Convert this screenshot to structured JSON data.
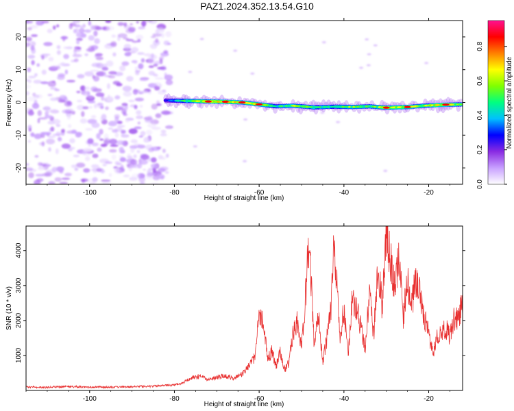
{
  "title": "PAZ1.2024.352.13.54.G10",
  "colors": {
    "snr_line": "#e83030",
    "axis": "#000000"
  },
  "chart_data": [
    {
      "type": "heatmap",
      "title": "PAZ1.2024.352.13.54.G10",
      "xlabel": "Height of straight line (km)",
      "ylabel": "Frequency (Hz)",
      "xlim": [
        -115,
        -12
      ],
      "ylim": [
        -25,
        25
      ],
      "xticks": [
        -100,
        -80,
        -60,
        -40,
        -20
      ],
      "yticks": [
        -20,
        -10,
        0,
        10,
        20
      ],
      "colorbar": {
        "label": "Normalized spectral amplitude",
        "range": [
          0,
          0.95
        ],
        "ticks": [
          "0.0",
          "0.2",
          "0.4",
          "0.6",
          "0.8"
        ],
        "colormap": [
          "#ffffff",
          "#c8a0ff",
          "#8a2be2",
          "#0000ff",
          "#00c0ff",
          "#00ff80",
          "#80ff00",
          "#ffff00",
          "#ff8000",
          "#ff0000",
          "#ff1090"
        ]
      },
      "noise_region": {
        "x": [
          -115,
          -84
        ],
        "y": [
          -25,
          25
        ],
        "level": 0.12
      },
      "ridge": [
        {
          "x": -82,
          "y": 0.6,
          "level": 0.3
        },
        {
          "x": -78,
          "y": 0.5,
          "level": 0.55
        },
        {
          "x": -72,
          "y": 0.3,
          "level": 0.8
        },
        {
          "x": -68,
          "y": 0.2,
          "level": 0.85
        },
        {
          "x": -64,
          "y": 0.0,
          "level": 0.8
        },
        {
          "x": -60,
          "y": -0.6,
          "level": 0.75
        },
        {
          "x": -56,
          "y": -1.2,
          "level": 0.5
        },
        {
          "x": -52,
          "y": -1.0,
          "level": 0.7
        },
        {
          "x": -47,
          "y": -1.5,
          "level": 0.6
        },
        {
          "x": -42,
          "y": -1.3,
          "level": 0.55
        },
        {
          "x": -38,
          "y": -1.4,
          "level": 0.7
        },
        {
          "x": -34,
          "y": -1.2,
          "level": 0.6
        },
        {
          "x": -30,
          "y": -1.6,
          "level": 0.8
        },
        {
          "x": -25,
          "y": -1.4,
          "level": 0.75
        },
        {
          "x": -21,
          "y": -1.0,
          "level": 0.7
        },
        {
          "x": -16,
          "y": -0.7,
          "level": 0.85
        },
        {
          "x": -12,
          "y": -0.6,
          "level": 0.6
        }
      ]
    },
    {
      "type": "line",
      "xlabel": "Height of straight line (km)",
      "ylabel": "SNR (10 * v/v)",
      "xlim": [
        -115,
        -12
      ],
      "ylim": [
        0,
        4700
      ],
      "xticks": [
        -100,
        -80,
        -60,
        -40,
        -20
      ],
      "yticks": [
        1000,
        2000,
        3000,
        4000
      ],
      "series": [
        {
          "x": [
            -115,
            -110,
            -105,
            -100,
            -95,
            -90,
            -85,
            -80,
            -78,
            -76,
            -74,
            -72,
            -70,
            -68,
            -66,
            -64,
            -62,
            -61,
            -60,
            -59,
            -58,
            -57,
            -56,
            -55,
            -54,
            -53,
            -52,
            -51,
            -50,
            -49,
            -48.5,
            -48,
            -47,
            -46,
            -45,
            -44,
            -43,
            -42.5,
            -42,
            -41,
            -40,
            -39,
            -38,
            -37,
            -36,
            -35,
            -34,
            -33,
            -32,
            -31,
            -30,
            -29,
            -28,
            -27,
            -26,
            -25,
            -24,
            -23,
            -22,
            -21,
            -20,
            -19,
            -18,
            -17,
            -16,
            -15,
            -14,
            -13,
            -12
          ],
          "y": [
            100,
            90,
            110,
            100,
            90,
            110,
            120,
            160,
            220,
            350,
            400,
            300,
            380,
            420,
            350,
            460,
            750,
            1000,
            2250,
            1900,
            900,
            1100,
            700,
            1100,
            600,
            800,
            1600,
            2000,
            1200,
            2800,
            3800,
            3700,
            1200,
            2200,
            800,
            1500,
            2500,
            4200,
            3700,
            1500,
            2300,
            1000,
            2600,
            2400,
            1800,
            1200,
            2800,
            1500,
            3700,
            2400,
            4600,
            3800,
            2900,
            3800,
            2100,
            3100,
            2500,
            3200,
            2900,
            2000,
            1700,
            1000,
            1500,
            1600,
            1800,
            1550,
            2100,
            2000,
            2600
          ]
        }
      ]
    }
  ]
}
